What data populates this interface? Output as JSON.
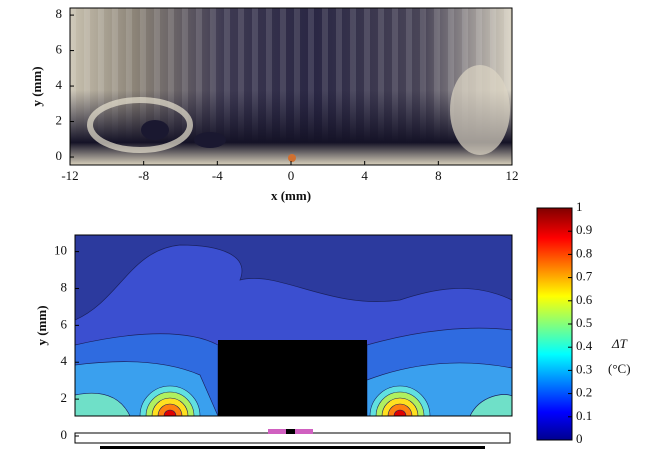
{
  "chart_data": [
    {
      "type": "image",
      "xlabel": "x (mm)",
      "ylabel": "y (mm)",
      "xlim": [
        -12,
        12
      ],
      "xticks": [
        -12,
        -8,
        -4,
        0,
        4,
        8,
        12
      ],
      "ylim": [
        -0.45,
        8.4
      ],
      "yticks": [
        0,
        2,
        4,
        6,
        8
      ]
    },
    {
      "type": "contour",
      "ylabel": "y (mm)",
      "ylim": [
        0,
        10.9
      ],
      "yticks": [
        0,
        2,
        4,
        6,
        8,
        10
      ],
      "colorbar": {
        "label": "ΔT",
        "unit": "(°C)",
        "lim": [
          0,
          1
        ],
        "ticks": [
          0,
          0.1,
          0.2,
          0.3,
          0.4,
          0.5,
          0.6,
          0.7,
          0.8,
          0.9,
          1
        ]
      }
    }
  ]
}
